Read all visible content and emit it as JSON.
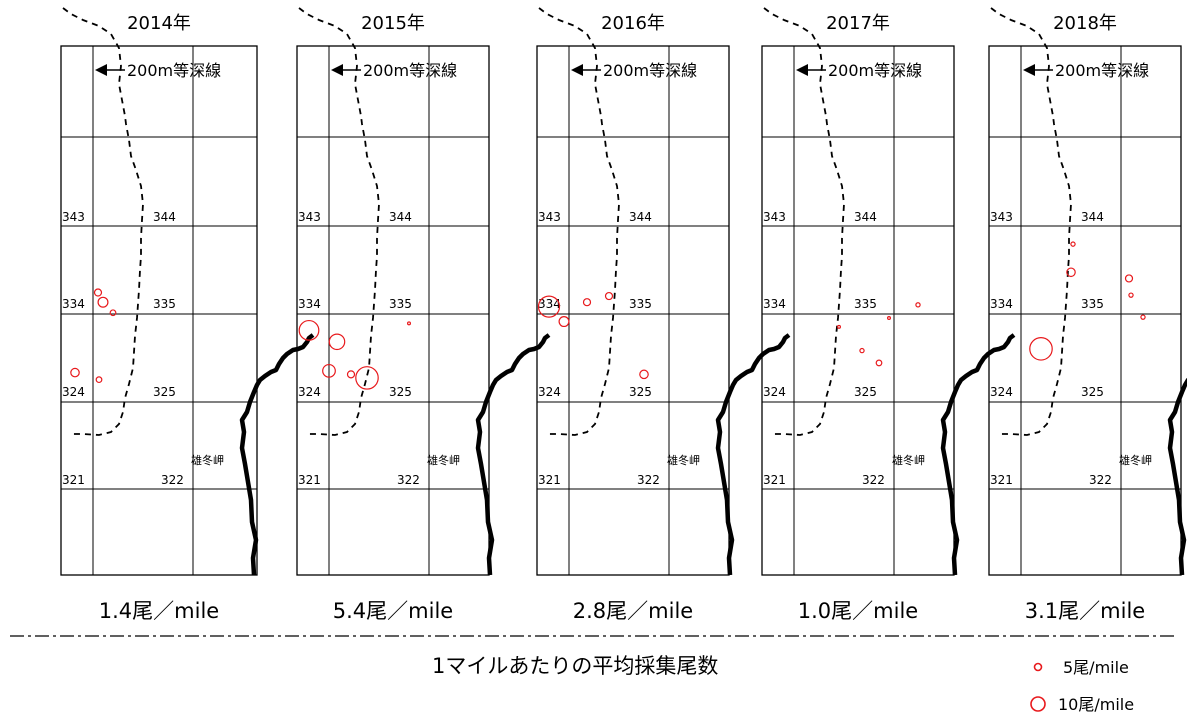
{
  "panels": [
    {
      "year": "2014年",
      "rate": "1.4尾／mile",
      "catches": [
        {
          "lon": 0.05,
          "lat": 3.21,
          "size": 0.5
        },
        {
          "lon": 0.1,
          "lat": 3.1,
          "size": 0.7
        },
        {
          "lon": 0.2,
          "lat": 2.98,
          "size": 0.4
        },
        {
          "lon": -0.18,
          "lat": 2.3,
          "size": 0.6
        },
        {
          "lon": 0.06,
          "lat": 2.22,
          "size": 0.4
        }
      ]
    },
    {
      "year": "2015年",
      "rate": "5.4尾／mile",
      "catches": [
        {
          "lon": -0.2,
          "lat": 2.78,
          "size": 1.4
        },
        {
          "lon": 0.08,
          "lat": 2.65,
          "size": 1.1
        },
        {
          "lon": 0.8,
          "lat": 2.86,
          "size": 0.2
        },
        {
          "lon": 0.0,
          "lat": 2.32,
          "size": 0.9
        },
        {
          "lon": 0.22,
          "lat": 2.28,
          "size": 0.5
        },
        {
          "lon": 0.38,
          "lat": 2.24,
          "size": 1.6
        }
      ]
    },
    {
      "year": "2016年",
      "rate": "2.8尾／mile",
      "catches": [
        {
          "lon": -0.2,
          "lat": 3.05,
          "size": 1.5
        },
        {
          "lon": 0.18,
          "lat": 3.1,
          "size": 0.5
        },
        {
          "lon": 0.4,
          "lat": 3.17,
          "size": 0.5
        },
        {
          "lon": -0.05,
          "lat": 2.88,
          "size": 0.7
        },
        {
          "lon": 0.75,
          "lat": 2.28,
          "size": 0.6
        }
      ]
    },
    {
      "year": "2017年",
      "rate": "1.0尾／mile",
      "catches": [
        {
          "lon": 1.24,
          "lat": 3.07,
          "size": 0.3
        },
        {
          "lon": 0.95,
          "lat": 2.92,
          "size": 0.2
        },
        {
          "lon": 0.45,
          "lat": 2.82,
          "size": 0.2
        },
        {
          "lon": 0.68,
          "lat": 2.55,
          "size": 0.3
        },
        {
          "lon": 0.85,
          "lat": 2.41,
          "size": 0.4
        }
      ]
    },
    {
      "year": "2018年",
      "rate": "3.1尾／mile",
      "catches": [
        {
          "lon": 0.52,
          "lat": 3.76,
          "size": 0.3
        },
        {
          "lon": 0.5,
          "lat": 3.44,
          "size": 0.6
        },
        {
          "lon": 1.08,
          "lat": 3.37,
          "size": 0.5
        },
        {
          "lon": 1.1,
          "lat": 3.18,
          "size": 0.3
        },
        {
          "lon": 1.22,
          "lat": 2.93,
          "size": 0.3
        },
        {
          "lon": 0.2,
          "lat": 2.57,
          "size": 1.6
        }
      ]
    }
  ],
  "labels": {
    "isobath": "200m等深線",
    "cape": "雄冬岬",
    "grid": {
      "g343": "343",
      "g344": "344",
      "g334": "334",
      "g335": "335",
      "g324": "324",
      "g325": "325",
      "g321": "321",
      "g322": "322"
    }
  },
  "caption": "1マイルあたりの平均採集尾数",
  "legend": [
    {
      "label": "5尾/mile",
      "size": 0.5
    },
    {
      "label": "10尾/mile",
      "size": 1.0
    }
  ],
  "colors": {
    "catch": "#e8191c",
    "line": "#000000"
  }
}
